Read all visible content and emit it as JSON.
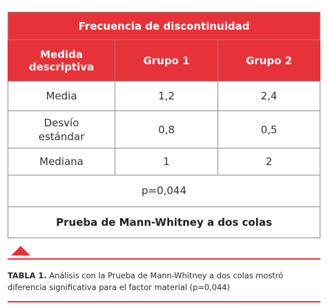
{
  "table": {
    "title": "Frecuencia de discontinuidad",
    "headers": [
      "Medida descriptiva",
      "Grupo 1",
      "Grupo 2"
    ],
    "rows": [
      {
        "label": "Media",
        "grupo1": "1,2",
        "grupo2": "2,4"
      },
      {
        "label": "Desvío estándar",
        "grupo1": "0,8",
        "grupo2": "0,5"
      },
      {
        "label": "Mediana",
        "grupo1": "1",
        "grupo2": "2"
      }
    ],
    "p_value": "p=0,044",
    "test": "Prueba de Mann-Whitney a dos colas"
  },
  "caption": {
    "label": "TABLA 1.",
    "text": " Análisis con la Prueba de Mann-Whitney a dos colas mostró diferencia significativa para el factor material (p=0,044)"
  },
  "colors": {
    "accent": "#e8323a"
  }
}
